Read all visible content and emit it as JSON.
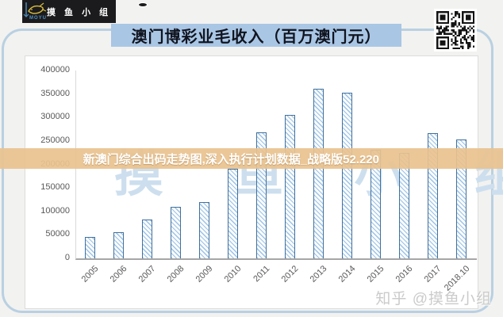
{
  "title": "澳门博彩业毛收入（百万澳门元）",
  "branding": {
    "logo_name": "摸 鱼 小 组",
    "logo_sub": "MOYU",
    "background_watermark": "摸 鱼 小 组",
    "zhihu_watermark": "知乎 @摸鱼小组"
  },
  "overlay_banner": {
    "text": "新澳门综合出码走势图,深入执行计划数据_战略版52.220"
  },
  "icons": {
    "qr_code": "qr-code-icon",
    "fish_logo": "fish-logo-icon"
  },
  "colors": {
    "title_bar_accent": "#a9c6e4",
    "frame_border": "#b9d0e2",
    "banner_band": "#e9c28f",
    "bar_border": "#41719c",
    "bar_hatch": "#9dc3e6",
    "axis_text": "#595959",
    "watermark_blue": "#cddfee"
  },
  "chart_data": {
    "type": "bar",
    "title": "澳门博彩业毛收入（百万澳门元）",
    "xlabel": "",
    "ylabel": "",
    "categories": [
      "2005",
      "2006",
      "2007",
      "2008",
      "2009",
      "2010",
      "2011",
      "2012",
      "2013",
      "2014",
      "2015",
      "2016",
      "2017",
      "2018.10"
    ],
    "values": [
      46000,
      56000,
      83000,
      110000,
      120000,
      190000,
      269000,
      305000,
      361000,
      352000,
      232000,
      224000,
      266000,
      253000
    ],
    "ylim": [
      0,
      400000
    ],
    "yticks": [
      0,
      50000,
      100000,
      150000,
      200000,
      250000,
      300000,
      350000,
      400000
    ],
    "grid": false,
    "legend": null,
    "bar_pattern": "diagonal-hatch",
    "x_tick_rotation": -45
  }
}
